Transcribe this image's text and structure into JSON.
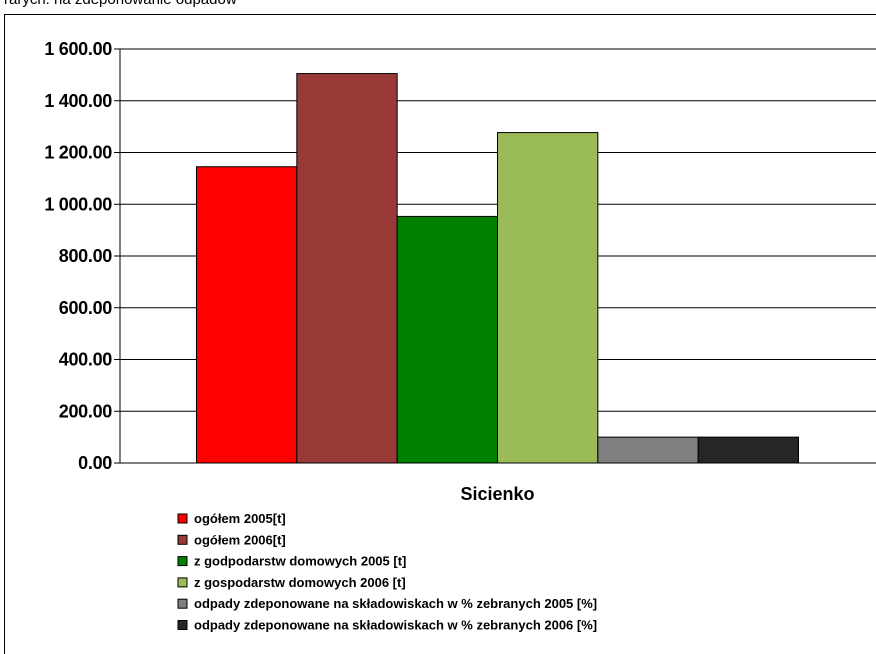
{
  "header_text": "rarych: na zdeponowanie odpadów",
  "chart_data": {
    "type": "bar",
    "categories": [
      "Sicienko"
    ],
    "series": [
      {
        "name": "ogółem 2005[t]",
        "values": [
          1145
        ],
        "color": "#ff0000"
      },
      {
        "name": "ogółem 2006[t]",
        "values": [
          1505
        ],
        "color": "#993a39"
      },
      {
        "name": "z godpodarstw domowych 2005 [t]",
        "values": [
          953
        ],
        "color": "#008000"
      },
      {
        "name": "z gospodarstw domowych 2006 [t]",
        "values": [
          1277
        ],
        "color": "#9bbb59"
      },
      {
        "name": "odpady zdeponowane na składowiskach w % zebranych 2005 [%]",
        "values": [
          100
        ],
        "color": "#808080"
      },
      {
        "name": "odpady zdeponowane na składowiskach w % zebranych 2006 [%]",
        "values": [
          100
        ],
        "color": "#262626"
      }
    ],
    "ylim": [
      0,
      1600
    ],
    "yticks": [
      0,
      200,
      400,
      600,
      800,
      1000,
      1200,
      1400,
      1600
    ],
    "ytick_labels": [
      "0.00",
      "200.00",
      "400.00",
      "600.00",
      "800.00",
      "1 000.00",
      "1 200.00",
      "1 400.00",
      "1 600.00"
    ],
    "grid": true,
    "legend": "bottom"
  }
}
